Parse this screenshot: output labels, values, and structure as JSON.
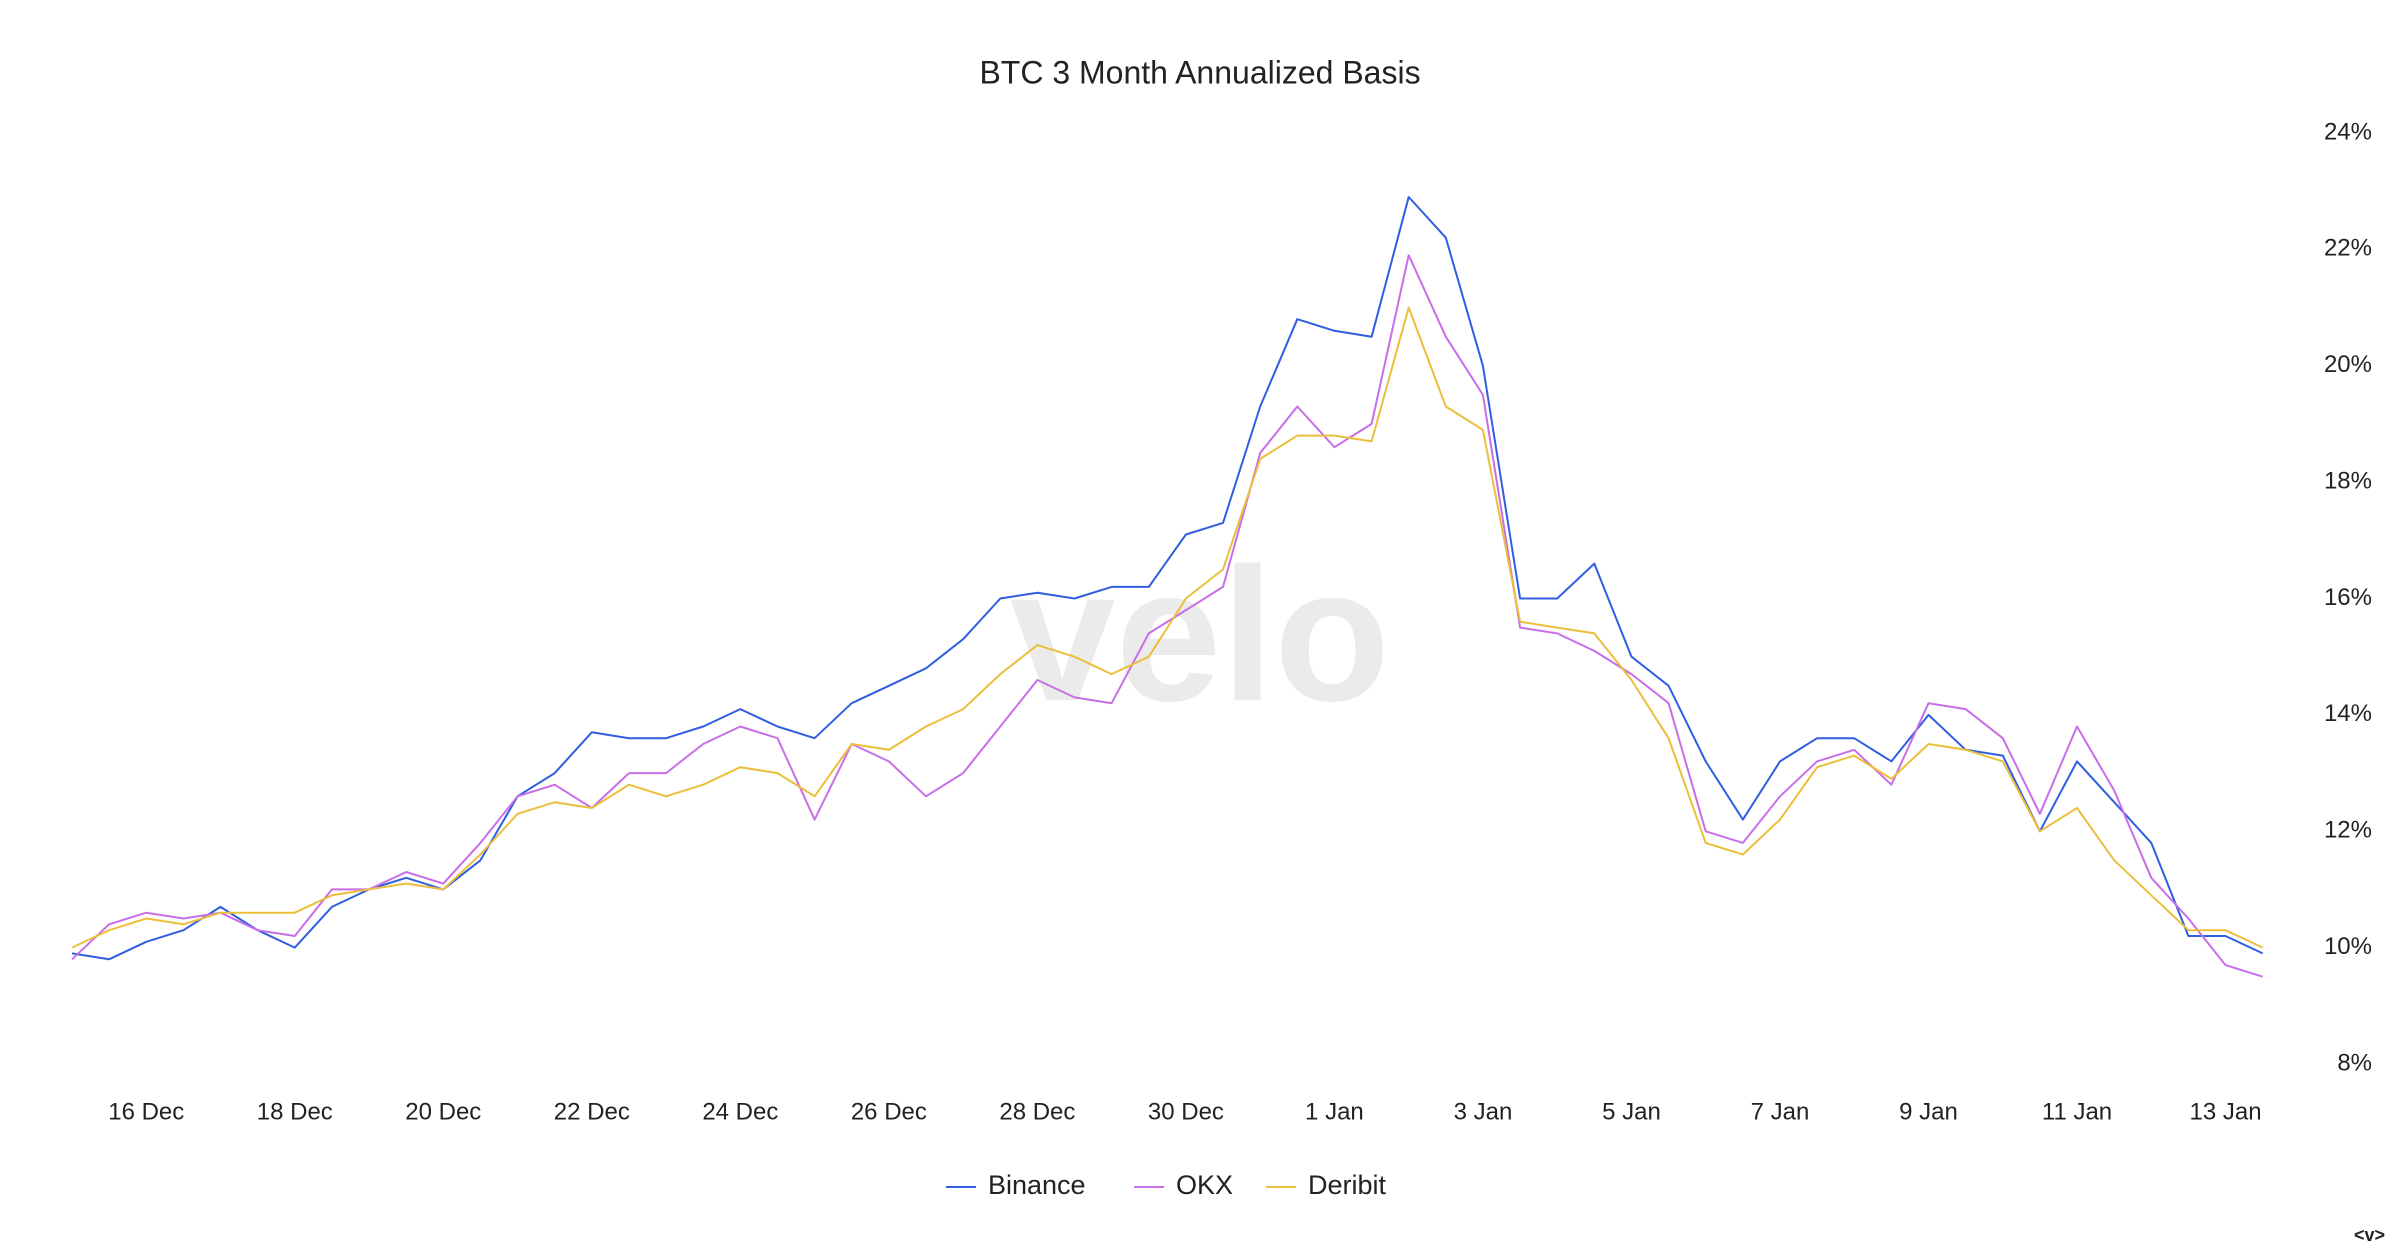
{
  "chart_data": {
    "type": "line",
    "title": "BTC 3 Month Annualized Basis",
    "watermark": "velo",
    "footer_mark": "<v>",
    "categories": [
      null,
      null,
      "16 Dec",
      null,
      null,
      null,
      "18 Dec",
      null,
      null,
      null,
      "20 Dec",
      null,
      null,
      null,
      "22 Dec",
      null,
      null,
      null,
      "24 Dec",
      null,
      null,
      null,
      "26 Dec",
      null,
      null,
      null,
      "28 Dec",
      null,
      null,
      null,
      "30 Dec",
      null,
      null,
      null,
      "1 Jan",
      null,
      null,
      null,
      "3 Jan",
      null,
      null,
      null,
      "5 Jan",
      null,
      null,
      null,
      "7 Jan",
      null,
      null,
      null,
      "9 Jan",
      null,
      null,
      null,
      "11 Jan",
      null,
      null,
      null,
      "13 Jan",
      null
    ],
    "series": [
      {
        "name": "Binance",
        "color": "#2f5fe0",
        "values": [
          9.9,
          9.8,
          10.1,
          10.3,
          10.7,
          10.3,
          10.0,
          10.7,
          11.0,
          11.2,
          11.0,
          11.5,
          12.6,
          13.0,
          13.7,
          13.6,
          13.6,
          13.8,
          14.1,
          13.8,
          13.6,
          14.2,
          14.5,
          14.8,
          15.3,
          16.0,
          16.1,
          16.0,
          16.2,
          16.2,
          17.1,
          17.3,
          19.3,
          20.8,
          20.6,
          20.5,
          22.9,
          22.2,
          20.0,
          16.0,
          16.0,
          16.6,
          15.0,
          14.5,
          13.2,
          12.2,
          13.2,
          13.6,
          13.6,
          13.2,
          14.0,
          13.4,
          13.3,
          12.0,
          13.2,
          12.5,
          11.8,
          10.2,
          10.2,
          9.9
        ]
      },
      {
        "name": "OKX",
        "color": "#c86ee8",
        "values": [
          9.8,
          10.4,
          10.6,
          10.5,
          10.6,
          10.3,
          10.2,
          11.0,
          11.0,
          11.3,
          11.1,
          11.8,
          12.6,
          12.8,
          12.4,
          13.0,
          13.0,
          13.5,
          13.8,
          13.6,
          12.2,
          13.5,
          13.2,
          12.6,
          13.0,
          13.8,
          14.6,
          14.3,
          14.2,
          15.4,
          15.8,
          16.2,
          18.5,
          19.3,
          18.6,
          19.0,
          21.9,
          20.5,
          19.5,
          15.5,
          15.4,
          15.1,
          14.7,
          14.2,
          12.0,
          11.8,
          12.6,
          13.2,
          13.4,
          12.8,
          14.2,
          14.1,
          13.6,
          12.3,
          13.8,
          12.7,
          11.2,
          10.5,
          9.7,
          9.5
        ]
      },
      {
        "name": "Deribit",
        "color": "#ebbf3a",
        "values": [
          10.0,
          10.3,
          10.5,
          10.4,
          10.6,
          10.6,
          10.6,
          10.9,
          11.0,
          11.1,
          11.0,
          11.6,
          12.3,
          12.5,
          12.4,
          12.8,
          12.6,
          12.8,
          13.1,
          13.0,
          12.6,
          13.5,
          13.4,
          13.8,
          14.1,
          14.7,
          15.2,
          15.0,
          14.7,
          15.0,
          16.0,
          16.5,
          18.4,
          18.8,
          18.8,
          18.7,
          21.0,
          19.3,
          18.9,
          15.6,
          15.5,
          15.4,
          14.6,
          13.6,
          11.8,
          11.6,
          12.2,
          13.1,
          13.3,
          12.9,
          13.5,
          13.4,
          13.2,
          12.0,
          12.4,
          11.5,
          10.9,
          10.3,
          10.3,
          10.0
        ]
      }
    ],
    "ylim": [
      8,
      24
    ],
    "yticks": [
      {
        "value": 8,
        "label": "8%"
      },
      {
        "value": 10,
        "label": "10%"
      },
      {
        "value": 12,
        "label": "12%"
      },
      {
        "value": 14,
        "label": "14%"
      },
      {
        "value": 16,
        "label": "16%"
      },
      {
        "value": 18,
        "label": "18%"
      },
      {
        "value": 20,
        "label": "20%"
      },
      {
        "value": 22,
        "label": "22%"
      },
      {
        "value": 24,
        "label": "24%"
      }
    ],
    "grid": false,
    "legend": "bottom"
  }
}
